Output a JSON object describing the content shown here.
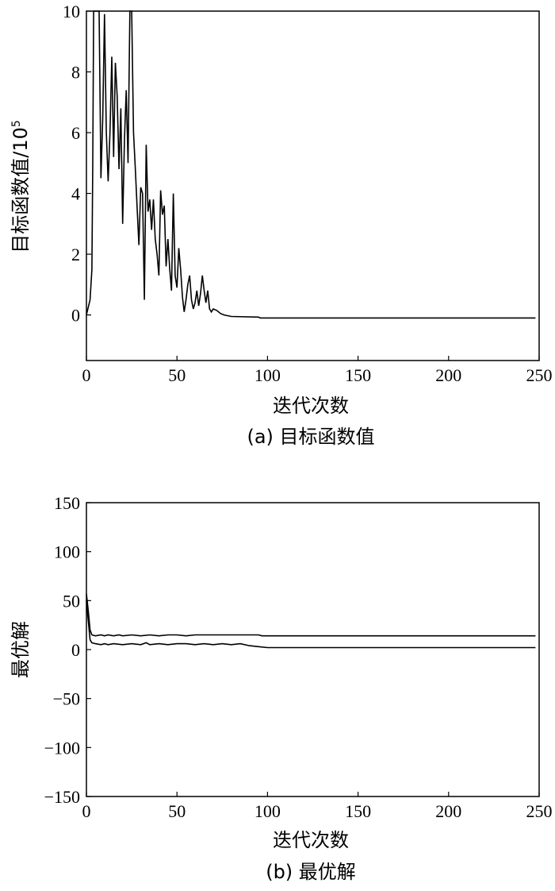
{
  "chart_data": [
    {
      "type": "line",
      "caption": "(a) 目标函数值",
      "xlabel": "迭代次数",
      "ylabel": "目标函数值/10",
      "ylabel_sup": "5",
      "xlim": [
        0,
        250
      ],
      "ylim": [
        -1.5,
        10
      ],
      "xticks": [
        0,
        50,
        100,
        150,
        200,
        250
      ],
      "yticks": [
        0,
        2,
        4,
        6,
        8,
        10
      ],
      "grid": false,
      "series": [
        {
          "x": [
            0,
            2,
            3,
            3.5,
            4,
            5,
            6,
            7,
            8,
            9,
            10,
            11,
            12,
            13,
            14,
            15,
            16,
            17,
            18,
            19,
            20,
            21,
            22,
            23,
            24,
            25,
            26,
            27,
            28,
            29,
            30,
            31,
            32,
            33,
            34,
            35,
            36,
            37,
            38,
            39,
            40,
            41,
            42,
            43,
            44,
            45,
            46,
            47,
            48,
            49,
            50,
            51,
            52,
            53,
            54,
            55,
            56,
            57,
            58,
            59,
            60,
            61,
            62,
            63,
            64,
            65,
            66,
            67,
            68,
            69,
            70,
            72,
            74,
            76,
            80,
            95,
            96,
            248
          ],
          "y": [
            0,
            0.5,
            1.5,
            5,
            10,
            10,
            10,
            10,
            4.5,
            6.5,
            9.9,
            6,
            4.4,
            6,
            8.5,
            5.2,
            8.3,
            7.2,
            4.8,
            6.8,
            3.0,
            5.8,
            7.4,
            5.0,
            10,
            10,
            6.0,
            4.8,
            3.5,
            2.3,
            4.2,
            4.0,
            0.5,
            5.6,
            3.4,
            3.8,
            2.8,
            3.8,
            2.5,
            2.0,
            1.3,
            4.1,
            3.3,
            3.6,
            1.6,
            2.5,
            1.5,
            0.8,
            4.0,
            1.3,
            0.9,
            2.2,
            1.5,
            0.6,
            0.1,
            0.5,
            1.0,
            1.3,
            0.5,
            0.2,
            0.4,
            0.8,
            0.3,
            0.7,
            1.3,
            0.8,
            0.4,
            0.8,
            0.2,
            0.1,
            0.2,
            0.15,
            0.05,
            0.0,
            -0.05,
            -0.07,
            -0.1,
            -0.1
          ]
        }
      ]
    },
    {
      "type": "line",
      "caption": "(b) 最优解",
      "xlabel": "迭代次数",
      "ylabel": "最优解",
      "xlim": [
        0,
        250
      ],
      "ylim": [
        -150,
        150
      ],
      "xticks": [
        0,
        50,
        100,
        150,
        200,
        250
      ],
      "yticks": [
        -150,
        -100,
        -50,
        0,
        50,
        100,
        150
      ],
      "ytick_labels": [
        "−150",
        "−100",
        "−50",
        "0",
        "50",
        "100",
        "150"
      ],
      "grid": false,
      "series": [
        {
          "x": [
            0,
            1,
            2,
            3,
            5,
            8,
            10,
            12,
            15,
            18,
            20,
            25,
            30,
            35,
            40,
            45,
            50,
            55,
            60,
            65,
            70,
            75,
            80,
            85,
            90,
            95,
            97,
            99,
            248
          ],
          "y": [
            57,
            40,
            20,
            15,
            14,
            15,
            14,
            15,
            14,
            15,
            14,
            15,
            14,
            15,
            14,
            15,
            15,
            14,
            15,
            15,
            15,
            15,
            15,
            15,
            15,
            15,
            14,
            14,
            14
          ]
        },
        {
          "x": [
            0,
            1,
            2,
            3,
            5,
            8,
            10,
            12,
            15,
            20,
            25,
            30,
            33,
            35,
            40,
            45,
            50,
            55,
            60,
            65,
            70,
            75,
            80,
            85,
            90,
            95,
            100,
            248
          ],
          "y": [
            50,
            30,
            10,
            7,
            6,
            5,
            6,
            5,
            6,
            5,
            6,
            5,
            7,
            5,
            6,
            5,
            6,
            6,
            5,
            6,
            5,
            6,
            5,
            6,
            4,
            3,
            2,
            2
          ]
        }
      ]
    }
  ]
}
